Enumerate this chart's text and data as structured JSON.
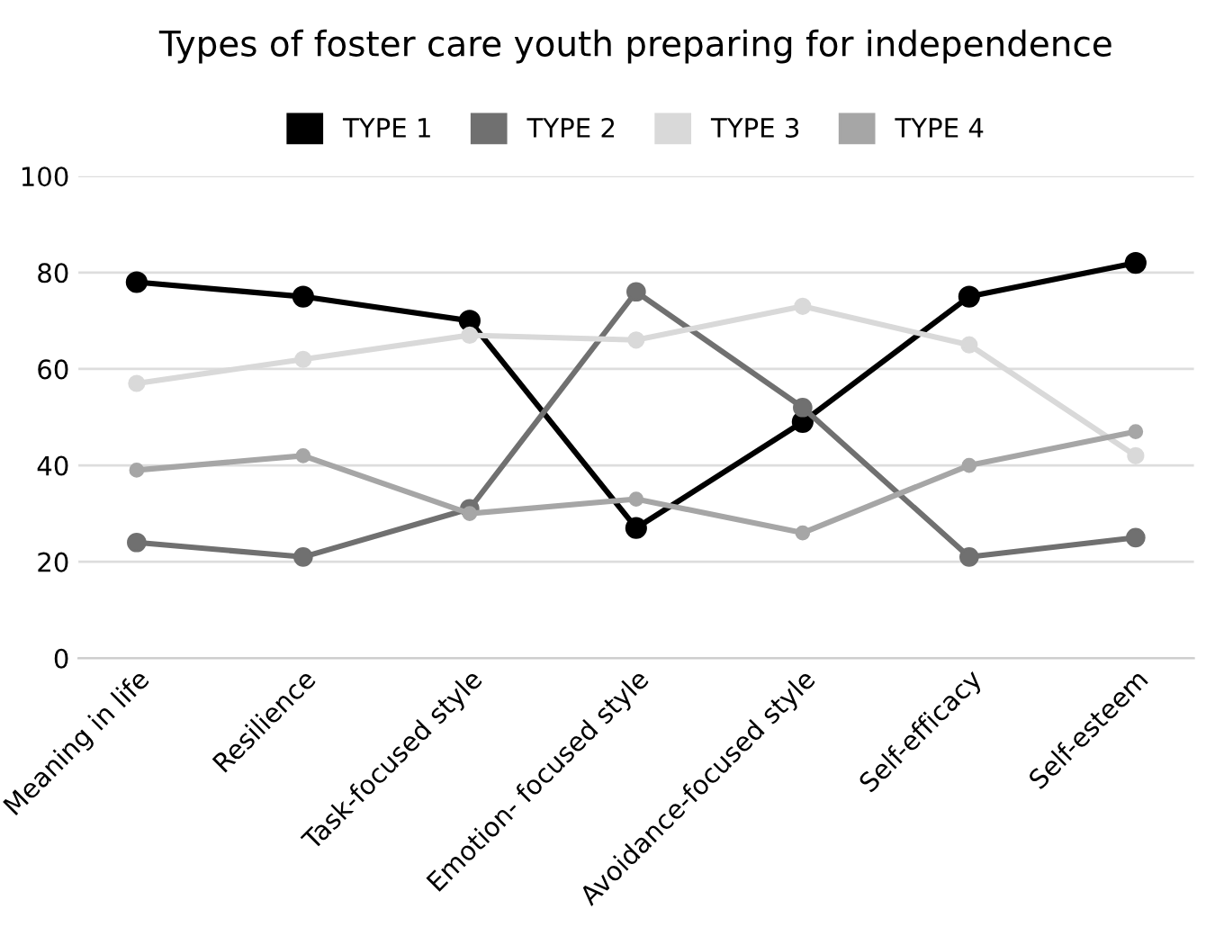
{
  "chart_data": {
    "type": "line",
    "title": "Types of foster care youth preparing for independence",
    "categories": [
      "Meaning in life",
      "Resilience",
      "Task-focused style",
      "Emotion- focused style",
      "Avoidance-focused style",
      "Self-efficacy",
      "Self-esteem"
    ],
    "series": [
      {
        "name": "TYPE 1",
        "color": "#000000",
        "values": [
          78,
          75,
          70,
          27,
          49,
          75,
          82
        ]
      },
      {
        "name": "TYPE 2",
        "color": "#707070",
        "values": [
          24,
          21,
          31,
          76,
          52,
          21,
          25
        ]
      },
      {
        "name": "TYPE 3",
        "color": "#d9d9d9",
        "values": [
          57,
          62,
          67,
          66,
          73,
          65,
          42
        ]
      },
      {
        "name": "TYPE 4",
        "color": "#a6a6a6",
        "values": [
          39,
          42,
          30,
          33,
          26,
          40,
          47
        ]
      }
    ],
    "ylim": [
      0,
      100
    ],
    "yticks": [
      0,
      20,
      40,
      60,
      80,
      100
    ],
    "grid": "y",
    "legend": "top",
    "marker": "circle",
    "line_style": "solid"
  }
}
